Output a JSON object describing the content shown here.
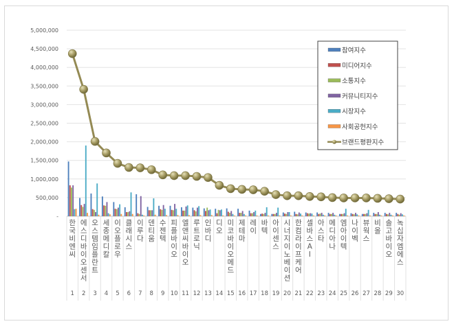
{
  "chart_data": {
    "type": "bar",
    "combo": "grouped bar + line",
    "title": "",
    "xlabel": "",
    "ylabel": "",
    "ylim": [
      0,
      5000000
    ],
    "yticks": [
      0,
      500000,
      1000000,
      1500000,
      2000000,
      2500000,
      3000000,
      3500000,
      4000000,
      4500000,
      5000000
    ],
    "ytick_labels": [
      "-",
      "500,000",
      "1,000,000",
      "1,500,000",
      "2,000,000",
      "2,500,000",
      "3,000,000",
      "3,500,000",
      "4,000,000",
      "4,500,000",
      "5,000,000"
    ],
    "grid": true,
    "legend_position": "upper right (inside plot)",
    "ranks": [
      "1",
      "2",
      "3",
      "4",
      "5",
      "6",
      "7",
      "8",
      "9",
      "10",
      "11",
      "12",
      "13",
      "14",
      "15",
      "16",
      "17",
      "18",
      "19",
      "20",
      "21",
      "22",
      "23",
      "24",
      "25",
      "26",
      "27",
      "28",
      "29",
      "30"
    ],
    "categories": [
      "한국비엔씨",
      "에스디바이오센서",
      "오스템임플란트",
      "세종메디칼",
      "이오플로우",
      "클래시스",
      "이루다",
      "덴티움",
      "수젠텍",
      "피플바이오",
      "엘앤씨바이오",
      "루트로닉",
      "인바디",
      "디오",
      "미코바이오메드",
      "제테마",
      "레이",
      "바텍",
      "아이센스",
      "시너지이노베이션",
      "한컴라이프케어",
      "셀바스AI",
      "아스타",
      "메디아나",
      "엠아이텍",
      "나이벡",
      "뷰웍스",
      "비올",
      "솔고바이오",
      "녹십자엠에스"
    ],
    "series": [
      {
        "name": "참여지수",
        "type": "bar",
        "color": "#4f81bd",
        "values": [
          1470000,
          490000,
          610000,
          530000,
          380000,
          240000,
          590000,
          250000,
          280000,
          280000,
          240000,
          230000,
          210000,
          200000,
          210000,
          200000,
          150000,
          60000,
          60000,
          100000,
          120000,
          100000,
          100000,
          90000,
          60000,
          80000,
          60000,
          90000,
          90000,
          90000
        ]
      },
      {
        "name": "미디어지수",
        "type": "bar",
        "color": "#c0504d",
        "values": [
          830000,
          300000,
          190000,
          290000,
          200000,
          110000,
          80000,
          160000,
          190000,
          170000,
          150000,
          160000,
          140000,
          80000,
          120000,
          90000,
          80000,
          70000,
          60000,
          70000,
          60000,
          80000,
          60000,
          60000,
          60000,
          60000,
          60000,
          60000,
          60000,
          60000
        ]
      },
      {
        "name": "소통지수",
        "type": "bar",
        "color": "#9bbb59",
        "values": [
          770000,
          250000,
          170000,
          280000,
          190000,
          110000,
          60000,
          160000,
          170000,
          160000,
          150000,
          130000,
          230000,
          170000,
          90000,
          90000,
          80000,
          60000,
          60000,
          60000,
          50000,
          70000,
          70000,
          60000,
          60000,
          50000,
          60000,
          60000,
          50000,
          40000
        ]
      },
      {
        "name": "커뮤니티지수",
        "type": "bar",
        "color": "#8064a2",
        "values": [
          830000,
          330000,
          110000,
          380000,
          230000,
          130000,
          540000,
          160000,
          300000,
          330000,
          260000,
          230000,
          160000,
          160000,
          140000,
          140000,
          110000,
          90000,
          90000,
          110000,
          100000,
          80000,
          90000,
          90000,
          80000,
          90000,
          80000,
          110000,
          90000,
          80000
        ]
      },
      {
        "name": "시장지수",
        "type": "bar",
        "color": "#4bacc6",
        "values": [
          190000,
          1900000,
          880000,
          80000,
          320000,
          640000,
          40000,
          480000,
          200000,
          200000,
          290000,
          270000,
          180000,
          180000,
          60000,
          60000,
          150000,
          240000,
          230000,
          110000,
          70000,
          70000,
          40000,
          40000,
          200000,
          50000,
          170000,
          40000,
          40000,
          50000
        ]
      },
      {
        "name": "사회공헌지수",
        "type": "bar",
        "color": "#f79646",
        "values": [
          200000,
          90000,
          40000,
          50000,
          60000,
          60000,
          20000,
          40000,
          30000,
          30000,
          30000,
          30000,
          30000,
          20000,
          20000,
          20000,
          20000,
          20000,
          20000,
          20000,
          20000,
          20000,
          20000,
          20000,
          20000,
          20000,
          20000,
          20000,
          20000,
          20000
        ]
      },
      {
        "name": "브랜드평판지수",
        "type": "line",
        "color": "#948a54",
        "values": [
          4370000,
          3410000,
          2010000,
          1700000,
          1420000,
          1310000,
          1300000,
          1250000,
          1110000,
          1090000,
          1090000,
          1070000,
          1040000,
          830000,
          740000,
          720000,
          710000,
          670000,
          580000,
          550000,
          550000,
          530000,
          520000,
          500000,
          490000,
          490000,
          490000,
          480000,
          470000,
          460000
        ]
      }
    ]
  }
}
